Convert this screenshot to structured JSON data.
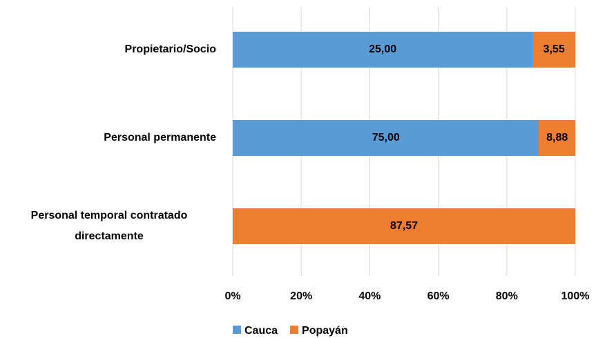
{
  "chart_data": {
    "type": "stacked_bar_percent",
    "categories": [
      "Propietario/Socio",
      "Personal permanente",
      "Personal temporal contratado directamente"
    ],
    "series": [
      {
        "name": "Cauca",
        "color": "#5b9bd5",
        "values": [
          25.0,
          75.0,
          null
        ],
        "value_labels": [
          "25,00",
          "75,00",
          null
        ]
      },
      {
        "name": "Popayán",
        "color": "#ed7d31",
        "values": [
          3.55,
          8.88,
          87.57
        ],
        "value_labels": [
          "3,55",
          "8,88",
          "87,57"
        ]
      }
    ],
    "xlim": [
      0,
      100
    ],
    "xticks": [
      {
        "value": 0,
        "label": "0%"
      },
      {
        "value": 20,
        "label": "20%"
      },
      {
        "value": 40,
        "label": "40%"
      },
      {
        "value": 60,
        "label": "60%"
      },
      {
        "value": 80,
        "label": "80%"
      },
      {
        "value": 100,
        "label": "100%"
      }
    ],
    "grid": true,
    "legend": "bottom"
  }
}
